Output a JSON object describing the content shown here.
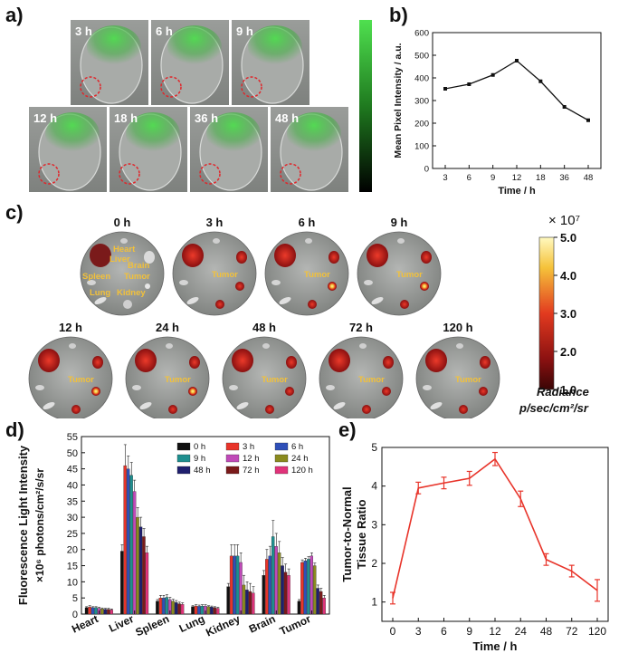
{
  "panel_letters": {
    "a": "a)",
    "b": "b)",
    "c": "c)",
    "d": "d)",
    "e": "e)"
  },
  "panel_a": {
    "tiles": [
      "3 h",
      "6 h",
      "9 h",
      "12 h",
      "18 h",
      "36 h",
      "48 h"
    ],
    "colors": {
      "green": "#3fc43f",
      "bg": "#8c8f8c",
      "circle": "#e0262b"
    }
  },
  "panel_c": {
    "top_times": [
      "0 h",
      "3 h",
      "6 h",
      "9 h"
    ],
    "bottom_times": [
      "12 h",
      "24 h",
      "48 h",
      "72 h",
      "120 h"
    ],
    "organ_labels": {
      "heart": "Heart",
      "liver": "Liver",
      "brain": "Brain",
      "spleen": "Spleen",
      "tumor": "Tumor",
      "lung": "Lung",
      "kidney": "Kidney"
    },
    "tumor_label": "Tumor",
    "colorbar": {
      "multiplier": "× 10⁷",
      "ticks": [
        "5.0",
        "4.0",
        "3.0",
        "2.0",
        "1.0"
      ],
      "title": "Radiance",
      "units": "p/sec/cm²/sr"
    },
    "label_color": "#f2c13a"
  },
  "chart_data": [
    {
      "type": "line",
      "panel": "b",
      "x": [
        "3",
        "6",
        "9",
        "12",
        "18",
        "36",
        "48"
      ],
      "y": [
        352,
        372,
        413,
        476,
        385,
        272,
        213
      ],
      "xlabel": "Time / h",
      "ylabel": "Mean Pixel Intensity / a.u.",
      "ylim": [
        0,
        600
      ],
      "yticks": [
        0,
        100,
        200,
        300,
        400,
        500,
        600
      ],
      "grid": false
    },
    {
      "type": "bar",
      "panel": "d",
      "categories": [
        "Heart",
        "Liver",
        "Spleen",
        "Lung",
        "Kidney",
        "Brain",
        "Tumor"
      ],
      "ylabel_line1": "Fluorescence Light Intensity",
      "ylabel_line2": "×10⁶ photons/cm²/s/sr",
      "ylim": [
        0,
        55
      ],
      "yticks": [
        0,
        5,
        10,
        15,
        20,
        25,
        30,
        35,
        40,
        45,
        50,
        55
      ],
      "legend_position": "top-right",
      "series": [
        {
          "name": "0 h",
          "color": "#111111",
          "values": [
            2.0,
            19.5,
            4.0,
            2.3,
            8.5,
            12.0,
            4.0
          ],
          "err": [
            0.3,
            2.0,
            0.5,
            0.3,
            1.0,
            1.5,
            0.5
          ]
        },
        {
          "name": "3 h",
          "color": "#e8342a",
          "values": [
            2.2,
            46.0,
            5.0,
            2.5,
            18.0,
            17.0,
            16.0
          ],
          "err": [
            0.4,
            6.5,
            0.8,
            0.4,
            3.5,
            3.0,
            0.8
          ]
        },
        {
          "name": "6 h",
          "color": "#2f4fb8",
          "values": [
            2.0,
            45.0,
            5.0,
            2.4,
            18.0,
            18.0,
            16.5
          ],
          "err": [
            0.3,
            4.0,
            0.8,
            0.4,
            3.5,
            3.0,
            0.8
          ]
        },
        {
          "name": "9 h",
          "color": "#1e8f8f",
          "values": [
            2.0,
            43.0,
            5.2,
            2.5,
            18.0,
            24.0,
            17.0
          ],
          "err": [
            0.3,
            4.0,
            0.8,
            0.4,
            3.5,
            5.0,
            0.8
          ]
        },
        {
          "name": "12 h",
          "color": "#c04ab8",
          "values": [
            1.8,
            38.0,
            4.5,
            2.5,
            16.0,
            21.0,
            18.0
          ],
          "err": [
            0.3,
            3.5,
            0.7,
            0.4,
            3.0,
            4.0,
            1.0
          ]
        },
        {
          "name": "24 h",
          "color": "#8a8a1e",
          "values": [
            1.6,
            30.0,
            4.0,
            2.3,
            9.0,
            19.0,
            15.0
          ],
          "err": [
            0.3,
            3.0,
            0.6,
            0.3,
            3.0,
            3.5,
            0.8
          ]
        },
        {
          "name": "48 h",
          "color": "#1f1f6e",
          "values": [
            1.5,
            27.0,
            3.6,
            2.2,
            7.5,
            15.0,
            8.0
          ],
          "err": [
            0.3,
            3.0,
            0.6,
            0.3,
            2.5,
            2.5,
            1.0
          ]
        },
        {
          "name": "72 h",
          "color": "#7a1a1a",
          "values": [
            1.5,
            24.0,
            3.2,
            2.0,
            7.0,
            13.0,
            7.0
          ],
          "err": [
            0.3,
            2.5,
            0.5,
            0.3,
            2.5,
            2.5,
            1.0
          ]
        },
        {
          "name": "120 h",
          "color": "#e0337a",
          "values": [
            1.3,
            19.0,
            3.0,
            1.8,
            6.5,
            12.0,
            5.0
          ],
          "err": [
            0.3,
            2.0,
            0.5,
            0.3,
            2.0,
            2.0,
            0.8
          ]
        }
      ]
    },
    {
      "type": "line",
      "panel": "e",
      "x": [
        "0",
        "3",
        "6",
        "9",
        "12",
        "24",
        "48",
        "72",
        "120"
      ],
      "y": [
        1.1,
        3.95,
        4.08,
        4.2,
        4.7,
        3.67,
        2.1,
        1.8,
        1.3
      ],
      "err": [
        0.15,
        0.15,
        0.15,
        0.18,
        0.17,
        0.2,
        0.15,
        0.15,
        0.28
      ],
      "xlabel": "Time / h",
      "ylabel_line1": "Tumor-to-Normal",
      "ylabel_line2": "Tissue Ratio",
      "ylim": [
        0.5,
        5
      ],
      "yticks": [
        1,
        2,
        3,
        4,
        5
      ],
      "color": "#e8342a",
      "grid": false
    }
  ]
}
